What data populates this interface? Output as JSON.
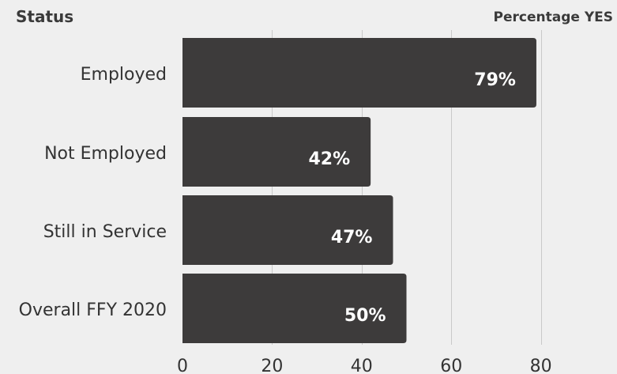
{
  "chart_data": {
    "type": "bar",
    "orientation": "horizontal",
    "y_header": "Status",
    "x_header": "Percentage YES",
    "categories": [
      "Employed",
      "Not Employed",
      "Still in Service",
      "Overall FFY 2020"
    ],
    "values": [
      79,
      42,
      47,
      50
    ],
    "data_labels": [
      "79%",
      "42%",
      "47%",
      "50%"
    ],
    "xticks": [
      0,
      20,
      40,
      60,
      80
    ],
    "xticklabels": [
      "0",
      "20",
      "40",
      "60",
      "80"
    ],
    "xlim": [
      0,
      97
    ],
    "grid": true,
    "legend": "none",
    "colors": {
      "bar": "#3d3b3b",
      "background": "#efefef",
      "grid": "#c9c9c9",
      "data_label": "#ffffff",
      "text": "#333333"
    }
  }
}
